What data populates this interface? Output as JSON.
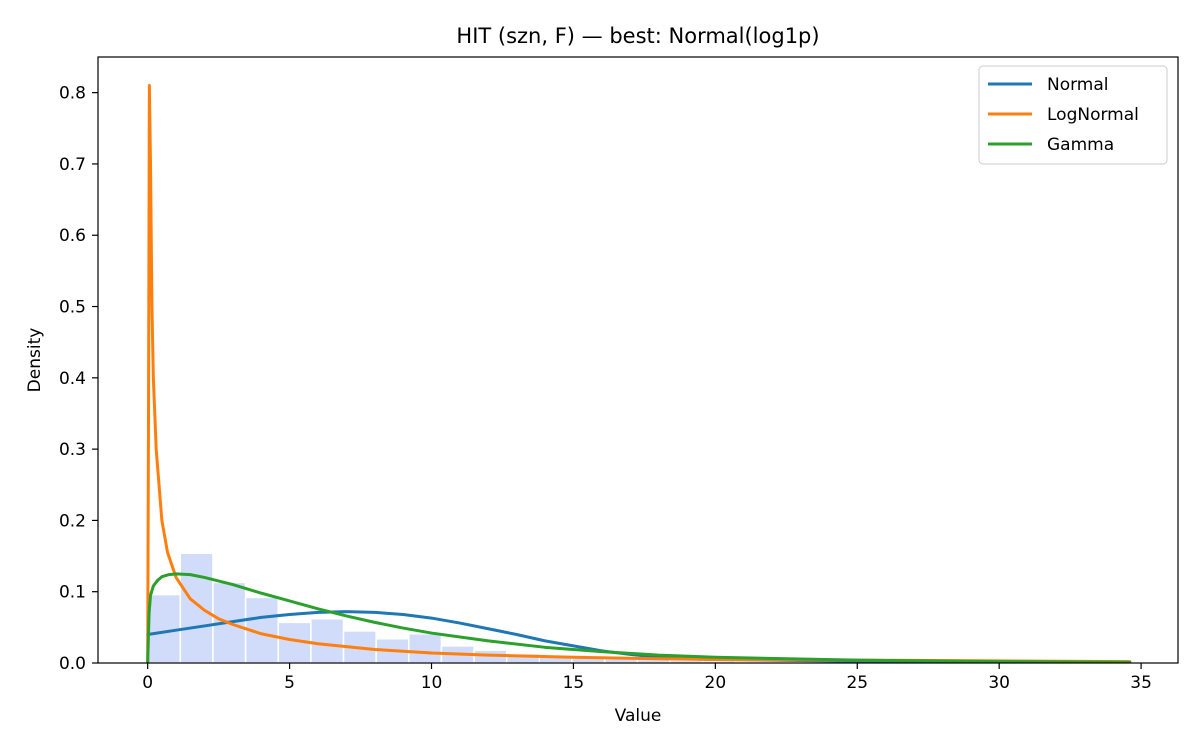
{
  "chart_data": {
    "type": "line",
    "title": "HIT (szn, F) — best: Normal(log1p)",
    "xlabel": "Value",
    "ylabel": "Density",
    "xlim": [
      -1.75,
      36.3
    ],
    "ylim": [
      0,
      0.85
    ],
    "xticks": [
      0,
      5,
      10,
      15,
      20,
      25,
      30,
      35
    ],
    "yticks": [
      0.0,
      0.1,
      0.2,
      0.3,
      0.4,
      0.5,
      0.6,
      0.7,
      0.8
    ],
    "grid": false,
    "legend_position": "top-right",
    "histogram": {
      "color": "#d0dcfa",
      "bins": [
        {
          "x0": 0.0,
          "x1": 1.15,
          "density": 0.096
        },
        {
          "x0": 1.15,
          "x1": 2.3,
          "density": 0.154
        },
        {
          "x0": 2.3,
          "x1": 3.45,
          "density": 0.113
        },
        {
          "x0": 3.45,
          "x1": 4.6,
          "density": 0.092
        },
        {
          "x0": 4.6,
          "x1": 5.75,
          "density": 0.057
        },
        {
          "x0": 5.75,
          "x1": 6.9,
          "density": 0.062
        },
        {
          "x0": 6.9,
          "x1": 8.05,
          "density": 0.045
        },
        {
          "x0": 8.05,
          "x1": 9.2,
          "density": 0.034
        },
        {
          "x0": 9.2,
          "x1": 10.35,
          "density": 0.041
        },
        {
          "x0": 10.35,
          "x1": 11.5,
          "density": 0.024
        },
        {
          "x0": 11.5,
          "x1": 12.65,
          "density": 0.018
        },
        {
          "x0": 12.65,
          "x1": 13.8,
          "density": 0.013
        },
        {
          "x0": 13.8,
          "x1": 14.95,
          "density": 0.011
        },
        {
          "x0": 14.95,
          "x1": 16.1,
          "density": 0.009
        },
        {
          "x0": 16.1,
          "x1": 17.25,
          "density": 0.006
        },
        {
          "x0": 17.25,
          "x1": 18.4,
          "density": 0.005
        },
        {
          "x0": 18.4,
          "x1": 19.55,
          "density": 0.004
        },
        {
          "x0": 19.55,
          "x1": 20.7,
          "density": 0.003
        },
        {
          "x0": 20.7,
          "x1": 21.85,
          "density": 0.002
        },
        {
          "x0": 21.85,
          "x1": 23.0,
          "density": 0.002
        },
        {
          "x0": 23.0,
          "x1": 24.15,
          "density": 0.001
        },
        {
          "x0": 24.15,
          "x1": 25.3,
          "density": 0.001
        },
        {
          "x0": 25.3,
          "x1": 26.45,
          "density": 0.001
        },
        {
          "x0": 26.45,
          "x1": 27.6,
          "density": 0.001
        },
        {
          "x0": 27.6,
          "x1": 28.75,
          "density": 0.0005
        },
        {
          "x0": 28.75,
          "x1": 29.9,
          "density": 0.0005
        },
        {
          "x0": 29.9,
          "x1": 31.05,
          "density": 0.0005
        },
        {
          "x0": 31.05,
          "x1": 32.2,
          "density": 0.0005
        },
        {
          "x0": 32.2,
          "x1": 33.35,
          "density": 0.0005
        },
        {
          "x0": 33.35,
          "x1": 34.5,
          "density": 0.0005
        }
      ]
    },
    "series": [
      {
        "name": "Normal",
        "color": "#1f77b4",
        "x": [
          0,
          1,
          2,
          3,
          4,
          5,
          6,
          7,
          8,
          9,
          10,
          11,
          12,
          13,
          14,
          15,
          16,
          17,
          18,
          19,
          20,
          22,
          24,
          26,
          28,
          30,
          32,
          34.6
        ],
        "y": [
          0.04,
          0.046,
          0.052,
          0.058,
          0.064,
          0.068,
          0.071,
          0.072,
          0.071,
          0.068,
          0.063,
          0.056,
          0.048,
          0.04,
          0.031,
          0.024,
          0.017,
          0.012,
          0.008,
          0.006,
          0.005,
          0.004,
          0.003,
          0.002,
          0.002,
          0.001,
          0.001,
          0.001
        ]
      },
      {
        "name": "LogNormal",
        "color": "#ff7f0e",
        "x": [
          0,
          0.03,
          0.06,
          0.1,
          0.15,
          0.2,
          0.3,
          0.4,
          0.5,
          0.7,
          1,
          1.5,
          2,
          2.5,
          3,
          4,
          5,
          6,
          8,
          10,
          12,
          15,
          18,
          20,
          25,
          30,
          34.6
        ],
        "y": [
          0,
          0.35,
          0.81,
          0.7,
          0.5,
          0.4,
          0.3,
          0.25,
          0.2,
          0.155,
          0.12,
          0.09,
          0.074,
          0.062,
          0.054,
          0.041,
          0.033,
          0.027,
          0.019,
          0.014,
          0.011,
          0.008,
          0.006,
          0.005,
          0.004,
          0.003,
          0.002
        ]
      },
      {
        "name": "Gamma",
        "color": "#2ca02c",
        "x": [
          0,
          0.05,
          0.1,
          0.2,
          0.35,
          0.5,
          0.75,
          1,
          1.5,
          2,
          3,
          4,
          5,
          6,
          7,
          8,
          9,
          10,
          12,
          14,
          16,
          18,
          20,
          25,
          30,
          34.6
        ],
        "y": [
          0,
          0.07,
          0.095,
          0.108,
          0.116,
          0.121,
          0.124,
          0.125,
          0.124,
          0.12,
          0.11,
          0.098,
          0.087,
          0.076,
          0.066,
          0.057,
          0.049,
          0.042,
          0.031,
          0.022,
          0.016,
          0.011,
          0.008,
          0.004,
          0.002,
          0.001
        ]
      }
    ]
  }
}
